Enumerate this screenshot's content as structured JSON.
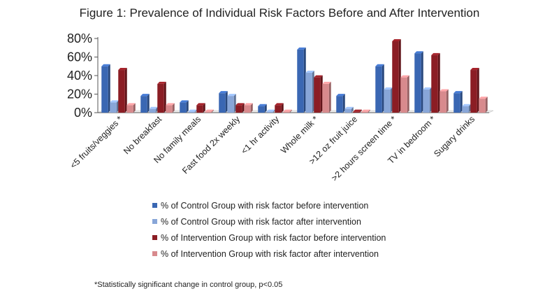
{
  "title": "Figure 1:  Prevalence of Individual Risk Factors Before and After Intervention",
  "footnote": "*Statistically significant change in control group, p<0.05",
  "colors": {
    "control_before": "#3a67b3",
    "control_after": "#88a6d8",
    "intervention_before": "#8b1d24",
    "intervention_after": "#d88a8d",
    "axis": "#555555",
    "grid": "#d0d0d0"
  },
  "chart_data": {
    "type": "bar",
    "title": "Figure 1:  Prevalence of Individual Risk Factors Before and After Intervention",
    "xlabel": "",
    "ylabel": "",
    "ylim": [
      0,
      80
    ],
    "yticks": [
      "0%",
      "20%",
      "40%",
      "60%",
      "80%"
    ],
    "grid": false,
    "legend_position": "bottom",
    "categories": [
      "<5 fruits/veggies *",
      "No breakfast",
      "No family meals",
      "Fast food 2x weekly",
      "<1 hr activity",
      "Whole milk *",
      ">12 oz fruit juice",
      ">2 hours screen time *",
      "TV in bedroom *",
      "Sugary drinks"
    ],
    "series": [
      {
        "name": "% of Control Group with risk factor before intervention",
        "values": [
          50,
          18,
          11,
          21,
          7,
          68,
          18,
          50,
          64,
          21
        ]
      },
      {
        "name": "% of Control Group with risk factor after intervention",
        "values": [
          11,
          4,
          1,
          18,
          1,
          43,
          4,
          25,
          25,
          7
        ]
      },
      {
        "name": "% of Intervention Group with risk factor before intervention",
        "values": [
          46,
          31,
          8,
          8,
          8,
          38,
          1,
          77,
          62,
          46
        ]
      },
      {
        "name": "% of Intervention Group with risk factor after intervention",
        "values": [
          8,
          8,
          1,
          8,
          1,
          31,
          1,
          38,
          23,
          15
        ]
      }
    ]
  }
}
